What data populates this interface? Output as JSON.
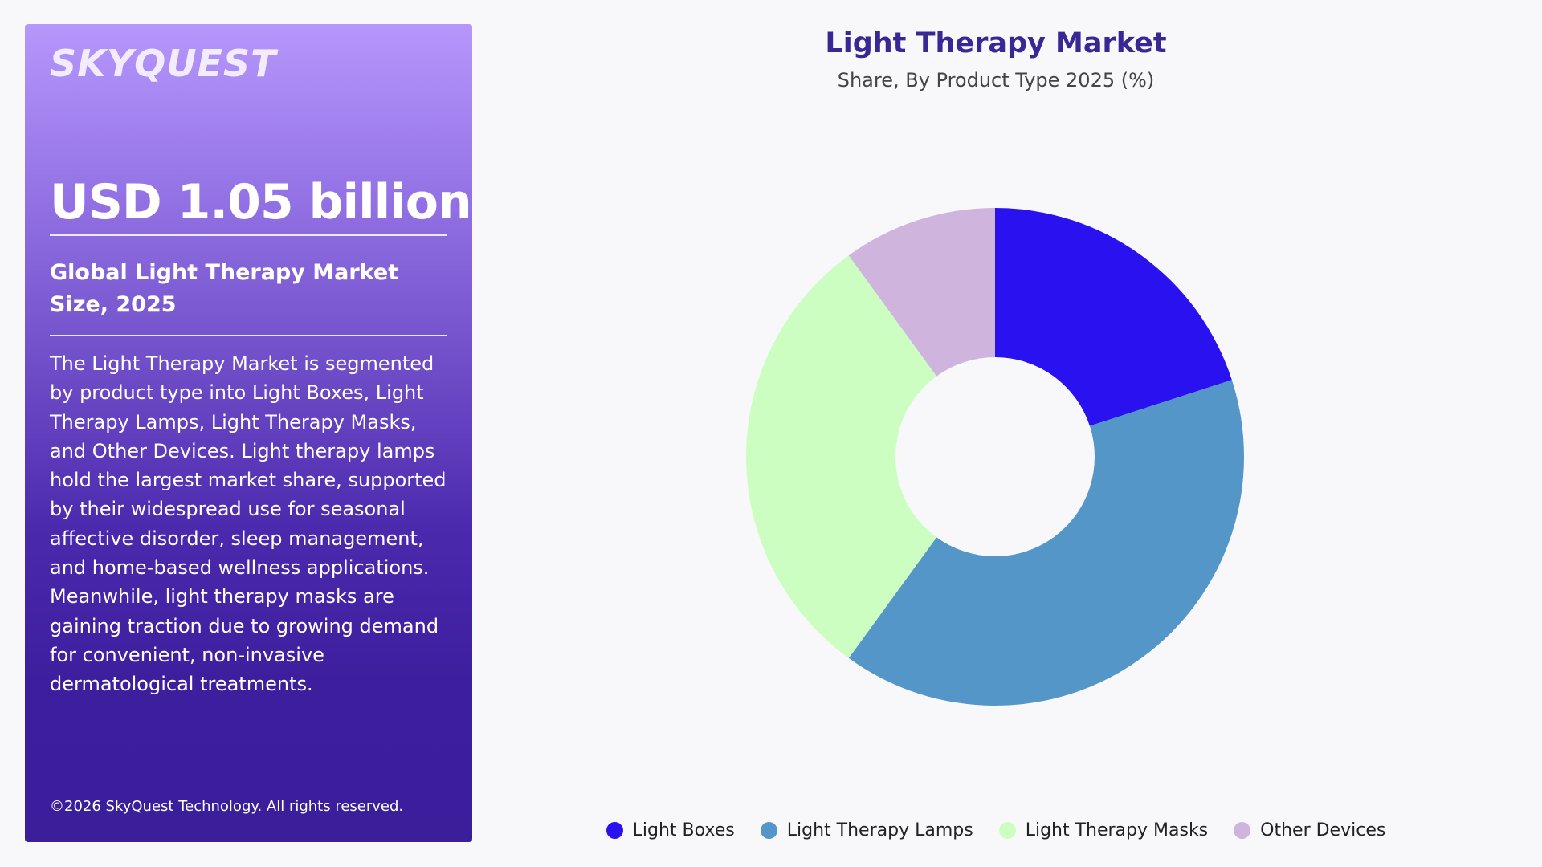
{
  "sidebar": {
    "logo_text": "SKYQUEST",
    "market_value": "USD 1.05 billion",
    "market_label": "Global Light Therapy Market Size, 2025",
    "description": "The Light Therapy Market is segmented by product type into Light Boxes, Light Therapy Lamps, Light Therapy Masks, and Other Devices. Light therapy lamps hold the largest market share, supported by their widespread use for seasonal affective disorder, sleep management, and home-based wellness applications. Meanwhile, light therapy masks are gaining traction due to growing demand for convenient, non-invasive dermatological treatments.",
    "copyright": "©2026 SkyQuest Technology. All rights reserved."
  },
  "colors": {
    "panel_top": "#b697fb",
    "panel_bottom": "#3a1e9a",
    "title": "#3a2796"
  },
  "chart_data": {
    "type": "pie",
    "style": "donut",
    "title": "Light Therapy Market",
    "subtitle": "Share, By Product Type 2025 (%)",
    "legend_position": "bottom",
    "series": [
      {
        "name": "Light Boxes",
        "value": 20,
        "color": "#2a12f0"
      },
      {
        "name": "Light Therapy Lamps",
        "value": 40,
        "color": "#5596c9"
      },
      {
        "name": "Light Therapy Masks",
        "value": 30,
        "color": "#ccfec2"
      },
      {
        "name": "Other Devices",
        "value": 10,
        "color": "#cfb4de"
      }
    ]
  }
}
